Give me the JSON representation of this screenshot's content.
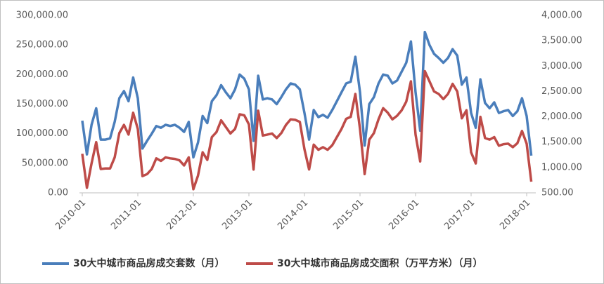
{
  "chart_data": {
    "type": "line",
    "categories": [
      "2010-01",
      null,
      null,
      null,
      null,
      null,
      null,
      null,
      null,
      null,
      null,
      null,
      "2011-01",
      null,
      null,
      null,
      null,
      null,
      null,
      null,
      null,
      null,
      null,
      null,
      "2012-01",
      null,
      null,
      null,
      null,
      null,
      null,
      null,
      null,
      null,
      null,
      null,
      "2013-01",
      null,
      null,
      null,
      null,
      null,
      null,
      null,
      null,
      null,
      null,
      null,
      "2014-01",
      null,
      null,
      null,
      null,
      null,
      null,
      null,
      null,
      null,
      null,
      null,
      "2015-01",
      null,
      null,
      null,
      null,
      null,
      null,
      null,
      null,
      null,
      null,
      null,
      "2016-01",
      null,
      null,
      null,
      null,
      null,
      null,
      null,
      null,
      null,
      null,
      null,
      "2017-01",
      null,
      null,
      null,
      null,
      null,
      null,
      null,
      null,
      null,
      null,
      null,
      "2018-01",
      null
    ],
    "series": [
      {
        "name": "30大中城市商品房成交套数（月）",
        "color": "#4a7ebb",
        "values": [
          122000,
          65000,
          115000,
          143000,
          90000,
          90000,
          92000,
          120000,
          160000,
          172000,
          155000,
          195000,
          160000,
          75000,
          88000,
          100000,
          113000,
          110000,
          115000,
          113000,
          115000,
          110000,
          103000,
          120000,
          60000,
          85000,
          130000,
          118000,
          155000,
          165000,
          182000,
          170000,
          160000,
          175000,
          200000,
          193000,
          175000,
          88000,
          198000,
          158000,
          160000,
          158000,
          150000,
          162000,
          175000,
          185000,
          183000,
          175000,
          135000,
          90000,
          140000,
          128000,
          132000,
          127000,
          140000,
          155000,
          170000,
          185000,
          188000,
          230000,
          170000,
          80000,
          150000,
          162000,
          185000,
          200000,
          198000,
          185000,
          190000,
          205000,
          220000,
          256000,
          170000,
          105000,
          272000,
          250000,
          235000,
          228000,
          220000,
          228000,
          243000,
          232000,
          183000,
          195000,
          135000,
          110000,
          192000,
          152000,
          143000,
          153000,
          135000,
          138000,
          140000,
          130000,
          138000,
          160000,
          130000,
          63000
        ]
      },
      {
        "name": "30大中城市商品房成交面积（万平方米）（月）",
        "color": "#be4b48",
        "axis": "y2",
        "values": [
          1270,
          600,
          1080,
          1500,
          970,
          980,
          980,
          1200,
          1680,
          1840,
          1650,
          2080,
          1760,
          830,
          870,
          970,
          1180,
          1130,
          1200,
          1180,
          1170,
          1140,
          1040,
          1200,
          570,
          840,
          1300,
          1150,
          1600,
          1700,
          1930,
          1800,
          1670,
          1760,
          2050,
          2030,
          1850,
          960,
          2120,
          1630,
          1650,
          1670,
          1580,
          1680,
          1840,
          1950,
          1940,
          1900,
          1360,
          960,
          1450,
          1350,
          1400,
          1350,
          1440,
          1600,
          1760,
          1960,
          2000,
          2450,
          1760,
          870,
          1550,
          1680,
          1950,
          2170,
          2080,
          1950,
          2020,
          2130,
          2300,
          2700,
          1650,
          1120,
          2900,
          2700,
          2500,
          2450,
          2350,
          2450,
          2650,
          2500,
          1970,
          2130,
          1300,
          1080,
          2000,
          1580,
          1550,
          1600,
          1430,
          1460,
          1470,
          1400,
          1480,
          1720,
          1470,
          720
        ]
      }
    ],
    "ylim": [
      0,
      300000
    ],
    "yticks": [
      {
        "value": 0,
        "label": "0.00"
      },
      {
        "value": 50000,
        "label": "50,000.00"
      },
      {
        "value": 100000,
        "label": "100,000.00"
      },
      {
        "value": 150000,
        "label": "150,000.00"
      },
      {
        "value": 200000,
        "label": "200,000.00"
      },
      {
        "value": 250000,
        "label": "250,000.00"
      },
      {
        "value": 300000,
        "label": "300,000.00"
      }
    ],
    "y2lim": [
      500,
      4000
    ],
    "y2ticks": [
      {
        "value": 500,
        "label": "500.00"
      },
      {
        "value": 1000,
        "label": "1,000.00"
      },
      {
        "value": 1500,
        "label": "1,500.00"
      },
      {
        "value": 2000,
        "label": "2,000.00"
      },
      {
        "value": 2500,
        "label": "2,500.00"
      },
      {
        "value": 3000,
        "label": "3,000.00"
      },
      {
        "value": 3500,
        "label": "3,500.00"
      },
      {
        "value": 4000,
        "label": "4,000.00"
      }
    ],
    "legend": "bottom"
  }
}
